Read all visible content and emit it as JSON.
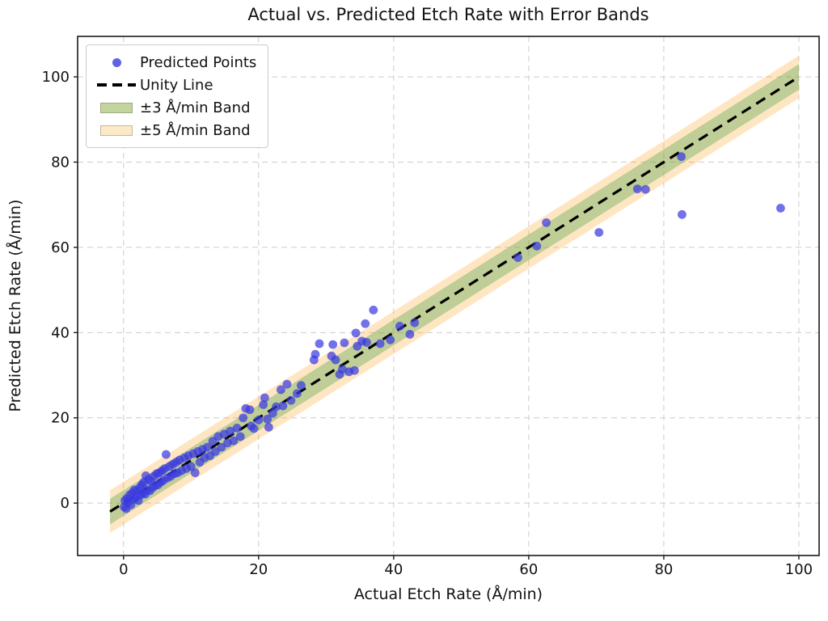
{
  "chart_data": {
    "type": "scatter",
    "title": "Actual vs. Predicted Etch Rate with Error Bands",
    "xlabel": "Actual Etch Rate (Å/min)",
    "ylabel": "Predicted Etch Rate (Å/min)",
    "xlim": [
      -6.8,
      103.0
    ],
    "ylim": [
      -12.3,
      109.5
    ],
    "xticks": [
      0,
      20,
      40,
      60,
      80,
      100
    ],
    "yticks": [
      0,
      20,
      40,
      60,
      80,
      100
    ],
    "grid": true,
    "grid_color": "#cccccc",
    "spine_color": "#1a1a1a",
    "legend": {
      "position": "upper left",
      "items": [
        {
          "label": "Predicted Points",
          "marker": "dot",
          "color": "#4646e0"
        },
        {
          "label": "Unity Line",
          "marker": "dashes",
          "color": "#000000"
        },
        {
          "label": "±3 Å/min Band",
          "marker": "patch",
          "color": "#c3d49c"
        },
        {
          "label": "±5 Å/min Band",
          "marker": "patch",
          "color": "#fce9c6"
        }
      ]
    },
    "unity_line": {
      "x0": -2,
      "y0": -2,
      "x1": 100,
      "y1": 100,
      "style": "dashed",
      "color": "#000000",
      "width": 3.2
    },
    "bands": [
      {
        "name": "plus-minus-5-band",
        "half_width": 5,
        "x_range": [
          -2,
          100
        ],
        "fill": "#ffa726",
        "opacity": 0.28
      },
      {
        "name": "plus-minus-3-band",
        "half_width": 3,
        "x_range": [
          -2,
          100
        ],
        "fill": "#3c9a3c",
        "opacity": 0.33
      }
    ],
    "point_style": {
      "color": "#3a3ae0",
      "opacity": 0.72,
      "radius": 5.4
    },
    "points": [
      [
        0.1,
        -0.9
      ],
      [
        0.2,
        0.6
      ],
      [
        0.4,
        -1.3
      ],
      [
        0.5,
        1.1
      ],
      [
        0.7,
        0.2
      ],
      [
        0.9,
        1.9
      ],
      [
        1.1,
        -0.4
      ],
      [
        1.3,
        2.4
      ],
      [
        1.5,
        0.9
      ],
      [
        1.6,
        3.1
      ],
      [
        1.8,
        1.3
      ],
      [
        2.0,
        2.9
      ],
      [
        2.2,
        0.6
      ],
      [
        2.4,
        3.6
      ],
      [
        2.5,
        1.9
      ],
      [
        2.7,
        4.3
      ],
      [
        2.9,
        2.3
      ],
      [
        3.0,
        4.9
      ],
      [
        3.2,
        2.1
      ],
      [
        3.3,
        6.4
      ],
      [
        3.5,
        3.1
      ],
      [
        3.7,
        5.6
      ],
      [
        3.9,
        2.9
      ],
      [
        4.1,
        5.1
      ],
      [
        4.3,
        3.6
      ],
      [
        4.5,
        6.3
      ],
      [
        4.7,
        4.1
      ],
      [
        4.9,
        6.9
      ],
      [
        5.1,
        4.3
      ],
      [
        5.3,
        7.1
      ],
      [
        5.5,
        4.9
      ],
      [
        5.7,
        7.6
      ],
      [
        5.9,
        5.3
      ],
      [
        6.1,
        8.1
      ],
      [
        6.3,
        11.4
      ],
      [
        6.5,
        5.9
      ],
      [
        6.8,
        8.6
      ],
      [
        7.0,
        6.3
      ],
      [
        7.3,
        9.1
      ],
      [
        7.5,
        6.9
      ],
      [
        7.8,
        9.6
      ],
      [
        8.0,
        7.1
      ],
      [
        8.3,
        10.1
      ],
      [
        8.6,
        7.6
      ],
      [
        9.0,
        10.6
      ],
      [
        9.3,
        8.1
      ],
      [
        9.6,
        11.1
      ],
      [
        10.0,
        8.6
      ],
      [
        10.3,
        11.6
      ],
      [
        10.6,
        7.1
      ],
      [
        11.0,
        12.1
      ],
      [
        11.3,
        9.6
      ],
      [
        11.7,
        12.6
      ],
      [
        12.0,
        10.6
      ],
      [
        12.4,
        13.1
      ],
      [
        12.8,
        11.1
      ],
      [
        13.2,
        14.5
      ],
      [
        13.6,
        12.1
      ],
      [
        14.0,
        15.6
      ],
      [
        14.5,
        13.1
      ],
      [
        14.9,
        16.2
      ],
      [
        15.4,
        14.1
      ],
      [
        15.8,
        16.9
      ],
      [
        16.3,
        14.6
      ],
      [
        16.8,
        17.6
      ],
      [
        17.3,
        15.6
      ],
      [
        17.7,
        20.0
      ],
      [
        18.1,
        22.2
      ],
      [
        18.7,
        21.9
      ],
      [
        18.9,
        18.1
      ],
      [
        19.3,
        17.5
      ],
      [
        20.0,
        19.5
      ],
      [
        20.7,
        23.1
      ],
      [
        20.9,
        24.7
      ],
      [
        21.3,
        19.7
      ],
      [
        21.5,
        17.8
      ],
      [
        22.1,
        21.1
      ],
      [
        22.6,
        22.6
      ],
      [
        23.3,
        26.6
      ],
      [
        23.6,
        22.8
      ],
      [
        24.2,
        27.9
      ],
      [
        24.8,
        24.1
      ],
      [
        25.7,
        25.7
      ],
      [
        26.3,
        27.6
      ],
      [
        28.2,
        33.6
      ],
      [
        28.4,
        34.9
      ],
      [
        29.0,
        37.4
      ],
      [
        30.8,
        34.5
      ],
      [
        31.0,
        37.2
      ],
      [
        31.4,
        33.6
      ],
      [
        32.0,
        30.2
      ],
      [
        32.4,
        31.4
      ],
      [
        32.7,
        37.6
      ],
      [
        33.4,
        30.8
      ],
      [
        34.2,
        31.1
      ],
      [
        34.4,
        39.9
      ],
      [
        34.6,
        36.8
      ],
      [
        35.3,
        38.0
      ],
      [
        35.8,
        42.1
      ],
      [
        36.0,
        37.7
      ],
      [
        37.0,
        45.3
      ],
      [
        38.0,
        37.4
      ],
      [
        39.5,
        38.3
      ],
      [
        40.9,
        41.5
      ],
      [
        42.4,
        39.6
      ],
      [
        43.1,
        42.3
      ],
      [
        58.4,
        57.6
      ],
      [
        61.2,
        60.3
      ],
      [
        62.6,
        65.8
      ],
      [
        70.4,
        63.5
      ],
      [
        76.1,
        73.7
      ],
      [
        77.3,
        73.6
      ],
      [
        82.6,
        81.3
      ],
      [
        82.7,
        67.7
      ],
      [
        97.3,
        69.2
      ]
    ]
  }
}
